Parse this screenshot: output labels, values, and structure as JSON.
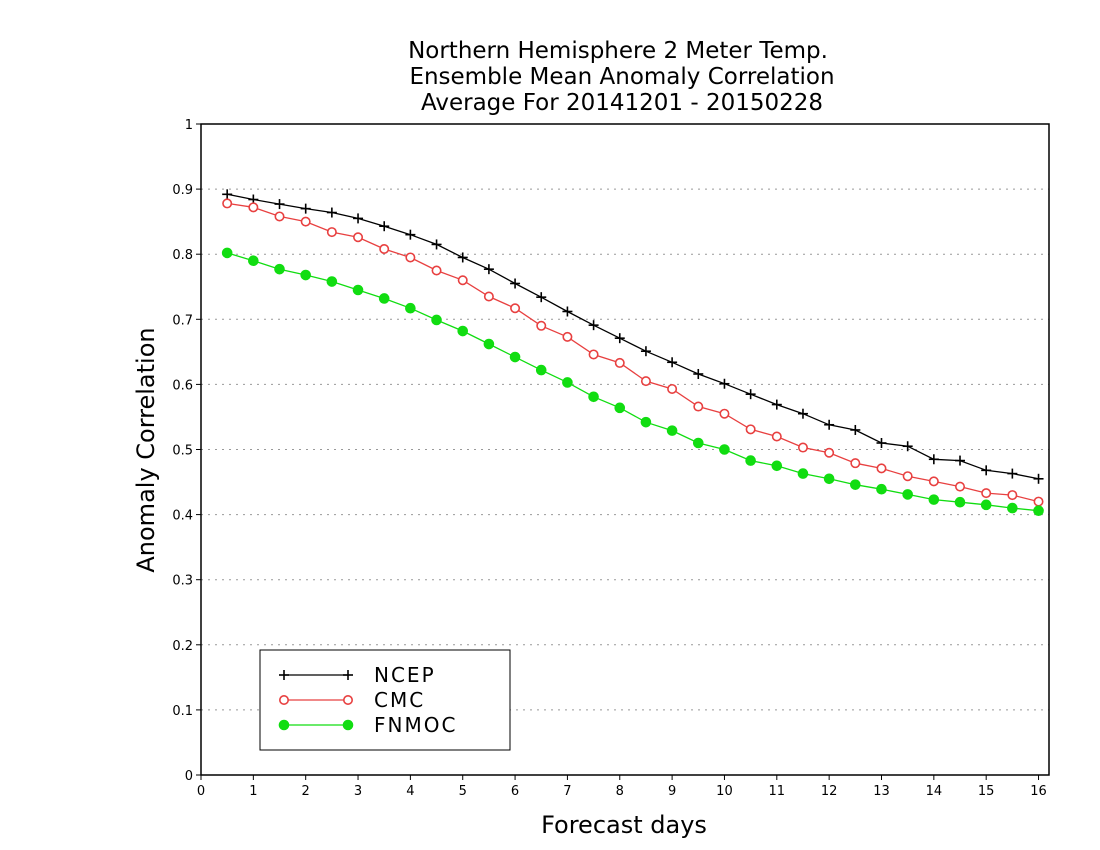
{
  "chart_data": {
    "type": "line",
    "title": [
      "Northern Hemisphere 2 Meter Temp.",
      "Ensemble Mean Anomaly Correlation",
      "Average For 20141201 - 20150228"
    ],
    "xlabel": "Forecast days",
    "ylabel": "Anomaly Correlation",
    "xlim": [
      0,
      16.2
    ],
    "ylim": [
      0,
      1
    ],
    "xticks": [
      "0",
      "1",
      "2",
      "3",
      "4",
      "5",
      "6",
      "7",
      "8",
      "9",
      "10",
      "11",
      "12",
      "13",
      "14",
      "15",
      "16"
    ],
    "yticks": [
      "0",
      "0.1",
      "0.2",
      "0.3",
      "0.4",
      "0.5",
      "0.6",
      "0.7",
      "0.8",
      "0.9",
      "1"
    ],
    "grid": true,
    "legend_position": "bottom-left",
    "x": [
      0.5,
      1,
      1.5,
      2,
      2.5,
      3,
      3.5,
      4,
      4.5,
      5,
      5.5,
      6,
      6.5,
      7,
      7.5,
      8,
      8.5,
      9,
      9.5,
      10,
      10.5,
      11,
      11.5,
      12,
      12.5,
      13,
      13.5,
      14,
      14.5,
      15,
      15.5,
      16
    ],
    "series": [
      {
        "name": "NCEP",
        "color": "#000000",
        "marker": "plus",
        "values": [
          0.892,
          0.884,
          0.877,
          0.87,
          0.864,
          0.855,
          0.843,
          0.83,
          0.815,
          0.795,
          0.777,
          0.755,
          0.734,
          0.712,
          0.691,
          0.671,
          0.651,
          0.634,
          0.616,
          0.601,
          0.585,
          0.569,
          0.555,
          0.538,
          0.53,
          0.51,
          0.505,
          0.485,
          0.483,
          0.468,
          0.463,
          0.455
        ]
      },
      {
        "name": "CMC",
        "color": "#e84040",
        "marker": "open-circle",
        "values": [
          0.878,
          0.872,
          0.858,
          0.85,
          0.834,
          0.826,
          0.808,
          0.795,
          0.775,
          0.76,
          0.735,
          0.717,
          0.69,
          0.673,
          0.646,
          0.633,
          0.605,
          0.593,
          0.566,
          0.555,
          0.531,
          0.52,
          0.503,
          0.495,
          0.479,
          0.471,
          0.459,
          0.451,
          0.443,
          0.433,
          0.43,
          0.42
        ]
      },
      {
        "name": "FNMOC",
        "color": "#11dd11",
        "marker": "filled-circle",
        "values": [
          0.802,
          0.79,
          0.777,
          0.768,
          0.758,
          0.745,
          0.732,
          0.717,
          0.699,
          0.682,
          0.662,
          0.642,
          0.622,
          0.603,
          0.581,
          0.564,
          0.542,
          0.529,
          0.51,
          0.5,
          0.483,
          0.475,
          0.463,
          0.455,
          0.446,
          0.439,
          0.431,
          0.423,
          0.419,
          0.415,
          0.41,
          0.406
        ]
      }
    ]
  }
}
